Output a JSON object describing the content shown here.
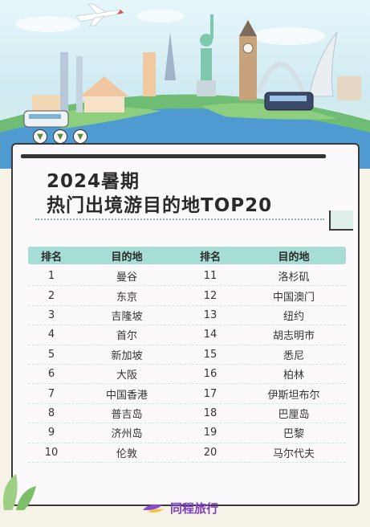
{
  "title": {
    "line1": "2024暑期",
    "line2": "热门出境游目的地TOP20"
  },
  "table": {
    "headers": [
      "排名",
      "目的地",
      "排名",
      "目的地"
    ],
    "rows": [
      {
        "rank_left": "1",
        "dest_left": "曼谷",
        "rank_right": "11",
        "dest_right": "洛杉矶"
      },
      {
        "rank_left": "2",
        "dest_left": "东京",
        "rank_right": "12",
        "dest_right": "中国澳门"
      },
      {
        "rank_left": "3",
        "dest_left": "吉隆坡",
        "rank_right": "13",
        "dest_right": "纽约"
      },
      {
        "rank_left": "4",
        "dest_left": "首尔",
        "rank_right": "14",
        "dest_right": "胡志明市"
      },
      {
        "rank_left": "5",
        "dest_left": "新加坡",
        "rank_right": "15",
        "dest_right": "悉尼"
      },
      {
        "rank_left": "6",
        "dest_left": "大阪",
        "rank_right": "16",
        "dest_right": "柏林"
      },
      {
        "rank_left": "7",
        "dest_left": "中国香港",
        "rank_right": "17",
        "dest_right": "伊斯坦布尔"
      },
      {
        "rank_left": "8",
        "dest_left": "普吉岛",
        "rank_right": "18",
        "dest_right": "巴厘岛"
      },
      {
        "rank_left": "9",
        "dest_left": "济州岛",
        "rank_right": "19",
        "dest_right": "巴黎"
      },
      {
        "rank_left": "10",
        "dest_left": "伦敦",
        "rank_right": "20",
        "dest_right": "马尔代夫"
      }
    ]
  },
  "brand": {
    "name": "同程旅行"
  },
  "colors": {
    "header_bg": "#a6ddd4",
    "brand": "#7b3fbf",
    "accent_green": "#5c8a3a"
  }
}
